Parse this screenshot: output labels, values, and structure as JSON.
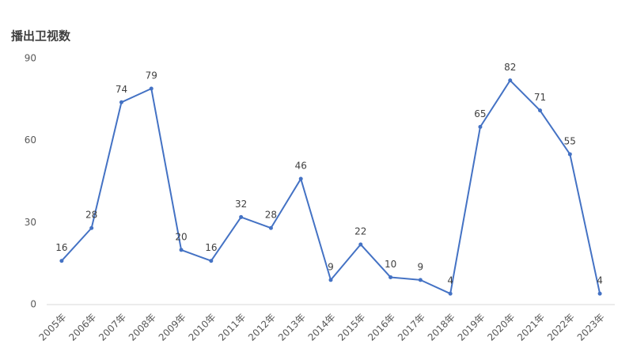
{
  "chart_data": {
    "type": "line",
    "title": "播出卫视数",
    "categories": [
      "2005年",
      "2006年",
      "2007年",
      "2008年",
      "2009年",
      "2010年",
      "2011年",
      "2012年",
      "2013年",
      "2014年",
      "2015年",
      "2016年",
      "2017年",
      "2018年",
      "2019年",
      "2020年",
      "2021年",
      "2022年",
      "2023年"
    ],
    "values": [
      16,
      28,
      74,
      79,
      20,
      16,
      32,
      28,
      46,
      9,
      22,
      10,
      9,
      4,
      65,
      82,
      71,
      55,
      4
    ],
    "color": "#4472c4",
    "ylim": [
      0,
      90
    ],
    "yticks": [
      0,
      30,
      60,
      90
    ],
    "grid": false
  }
}
